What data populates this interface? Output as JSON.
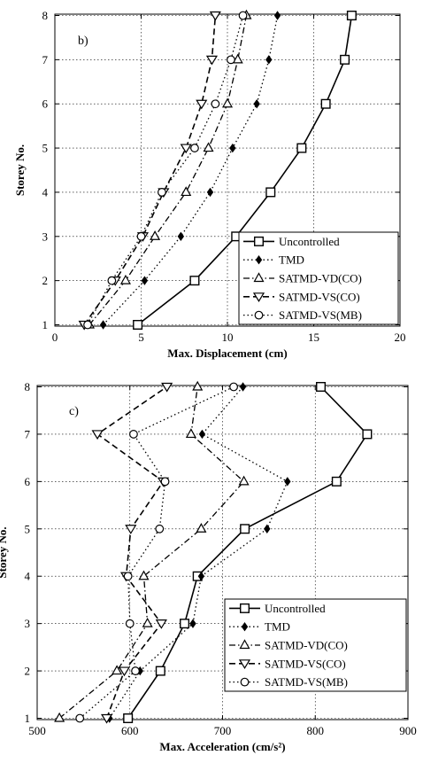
{
  "chart_data": [
    {
      "type": "line",
      "panel_label": "b)",
      "xlabel": "Max. Displacement (cm)",
      "ylabel": "Storey No.",
      "xlim": [
        0,
        20
      ],
      "ylim": [
        1,
        8
      ],
      "xticks": [
        "0",
        "5",
        "10",
        "15",
        "20"
      ],
      "yticks": [
        "1",
        "2",
        "3",
        "4",
        "5",
        "6",
        "7",
        "8"
      ],
      "grid": true,
      "legend": "bottom-right",
      "y": [
        1,
        2,
        3,
        4,
        5,
        6,
        7,
        8
      ],
      "series": [
        {
          "name": "Uncontrolled",
          "marker": "square",
          "dash": "solid",
          "x": [
            4.8,
            8.1,
            10.5,
            12.5,
            14.3,
            15.7,
            16.8,
            17.2
          ]
        },
        {
          "name": "TMD",
          "marker": "diamond",
          "dash": "dot",
          "x": [
            2.8,
            5.2,
            7.3,
            9.0,
            10.3,
            11.7,
            12.4,
            12.9
          ]
        },
        {
          "name": "SATMD-VD(CO)",
          "marker": "triangle-up",
          "dash": "dashdot",
          "x": [
            2.0,
            4.1,
            5.8,
            7.6,
            8.9,
            10.0,
            10.6,
            11.1
          ]
        },
        {
          "name": "SATMD-VS(CO)",
          "marker": "triangle-down",
          "dash": "dash",
          "x": [
            1.7,
            3.5,
            5.1,
            6.3,
            7.6,
            8.5,
            9.1,
            9.3
          ]
        },
        {
          "name": "SATMD-VS(MB)",
          "marker": "circle",
          "dash": "dot",
          "x": [
            1.9,
            3.3,
            5.0,
            6.2,
            8.1,
            9.3,
            10.2,
            10.9
          ]
        }
      ]
    },
    {
      "type": "line",
      "panel_label": "c)",
      "xlabel": "Max. Acceleration (cm/s²)",
      "ylabel": "Storey No.",
      "xlim": [
        500,
        900
      ],
      "ylim": [
        1,
        8
      ],
      "xticks": [
        "500",
        "600",
        "700",
        "800",
        "900"
      ],
      "yticks": [
        "1",
        "2",
        "3",
        "4",
        "5",
        "6",
        "7",
        "8"
      ],
      "grid": true,
      "legend": "bottom-right",
      "y": [
        1,
        2,
        3,
        4,
        5,
        6,
        7,
        8
      ],
      "series": [
        {
          "name": "Uncontrolled",
          "marker": "square",
          "dash": "solid",
          "x": [
            598,
            633,
            659,
            673,
            724,
            823,
            856,
            806
          ]
        },
        {
          "name": "TMD",
          "marker": "diamond",
          "dash": "dot",
          "x": [
            578,
            611,
            668,
            677,
            748,
            770,
            678,
            722
          ]
        },
        {
          "name": "SATMD-VD(CO)",
          "marker": "triangle-up",
          "dash": "dashdot",
          "x": [
            524,
            586,
            619,
            615,
            677,
            723,
            666,
            673
          ]
        },
        {
          "name": "SATMD-VS(CO)",
          "marker": "triangle-down",
          "dash": "dash",
          "x": [
            575,
            594,
            634,
            596,
            601,
            636,
            565,
            640
          ]
        },
        {
          "name": "SATMD-VS(MB)",
          "marker": "circle",
          "dash": "dot",
          "x": [
            546,
            606,
            600,
            598,
            632,
            638,
            604,
            712
          ]
        }
      ]
    }
  ]
}
